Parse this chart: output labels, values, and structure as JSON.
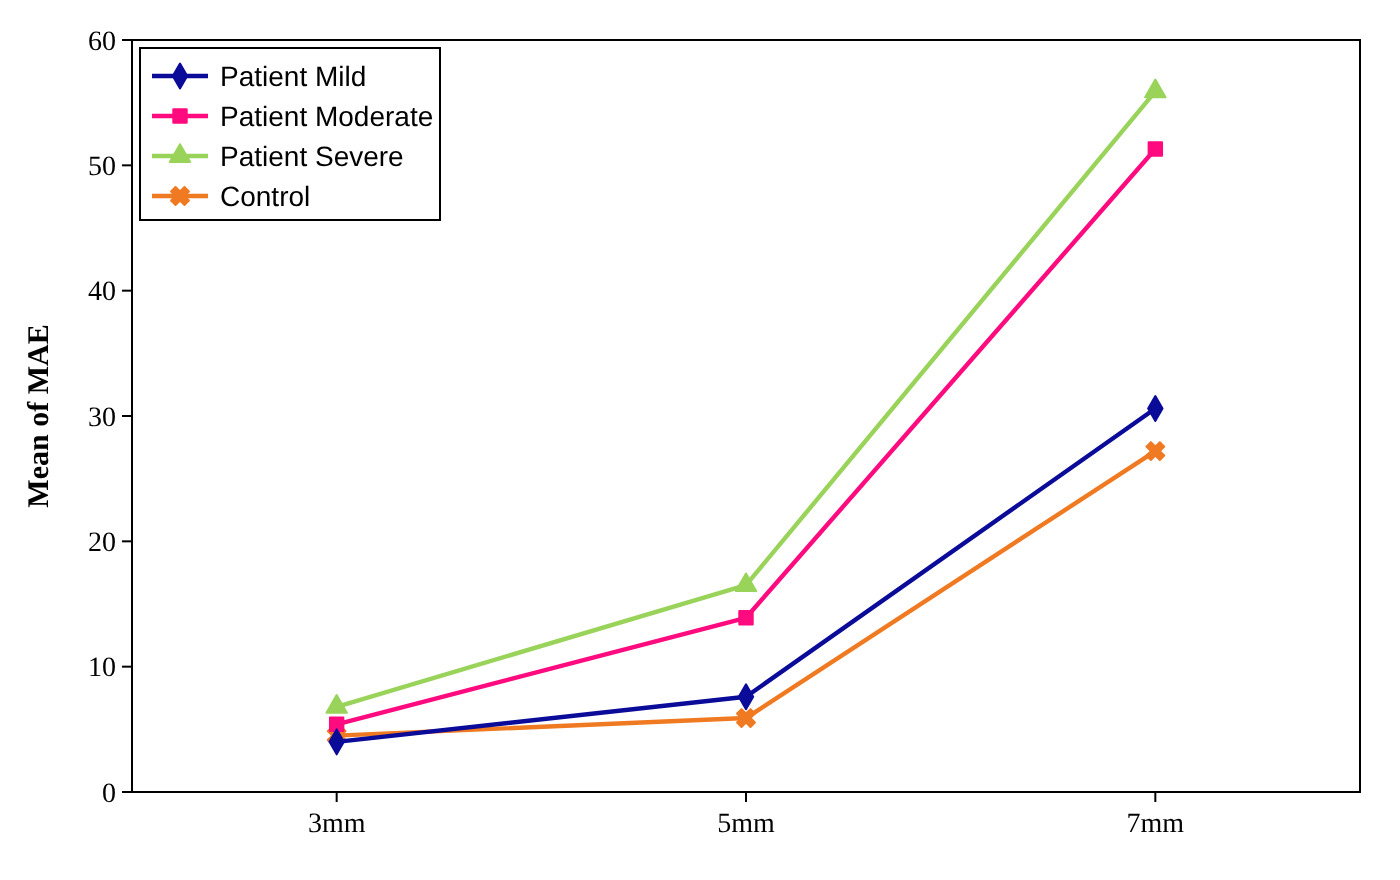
{
  "chart_data": {
    "type": "line",
    "ylabel": "Mean of MAE",
    "categories": [
      "3mm",
      "5mm",
      "7mm"
    ],
    "ylim": [
      0,
      60
    ],
    "yticks": [
      0,
      10,
      20,
      30,
      40,
      50,
      60
    ],
    "grid": false,
    "legend": "top left",
    "series": [
      {
        "name": "Patient Mild",
        "color": "#0b0b99",
        "marker": "diamond",
        "values": [
          4.0,
          7.6,
          30.6
        ]
      },
      {
        "name": "Patient Moderate",
        "color": "#ff0a7f",
        "marker": "square",
        "values": [
          5.4,
          13.9,
          51.3
        ]
      },
      {
        "name": "Patient Severe",
        "color": "#99d35a",
        "marker": "triangle",
        "values": [
          6.8,
          16.5,
          55.9
        ]
      },
      {
        "name": "Control",
        "color": "#f07a22",
        "marker": "cross",
        "values": [
          4.5,
          5.9,
          27.2
        ]
      }
    ]
  }
}
